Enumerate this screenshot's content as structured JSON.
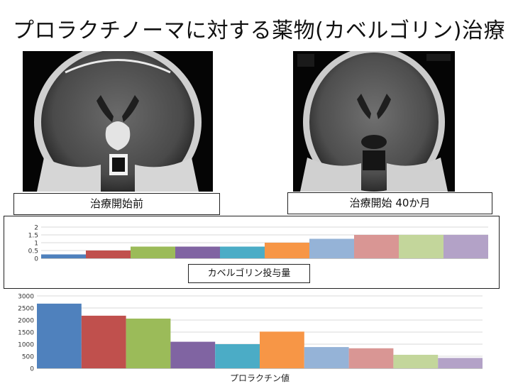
{
  "slide": {
    "title": "プロラクチノーマに対する薬物(カベルゴリン)治療",
    "caption_before": "治療開始前",
    "caption_after": "治療開始 40か月"
  },
  "chart_data": [
    {
      "type": "bar",
      "xlabel": "カベルゴリン投与量",
      "ylim": [
        0,
        2
      ],
      "yticks": [
        "0",
        "0.5",
        "1",
        "1.5",
        "2"
      ],
      "values": [
        0.25,
        0.5,
        0.75,
        0.75,
        0.75,
        1.0,
        1.25,
        1.5,
        1.5,
        1.5
      ],
      "colors": [
        "#4f81bd",
        "#c0504d",
        "#9bbb59",
        "#8064a2",
        "#4bacc6",
        "#f79646",
        "#95b3d7",
        "#d99694",
        "#c3d69b",
        "#b3a2c7"
      ],
      "grid": true
    },
    {
      "type": "bar",
      "xlabel": "プロラクチン値",
      "ylim": [
        0,
        3000
      ],
      "yticks": [
        "0",
        "500",
        "1000",
        "1500",
        "2000",
        "2500",
        "3000"
      ],
      "values": [
        2680,
        2180,
        2060,
        1100,
        1000,
        1520,
        880,
        830,
        560,
        430
      ],
      "colors": [
        "#4f81bd",
        "#c0504d",
        "#9bbb59",
        "#8064a2",
        "#4bacc6",
        "#f79646",
        "#95b3d7",
        "#d99694",
        "#c3d69b",
        "#b3a2c7"
      ],
      "grid": true
    }
  ]
}
